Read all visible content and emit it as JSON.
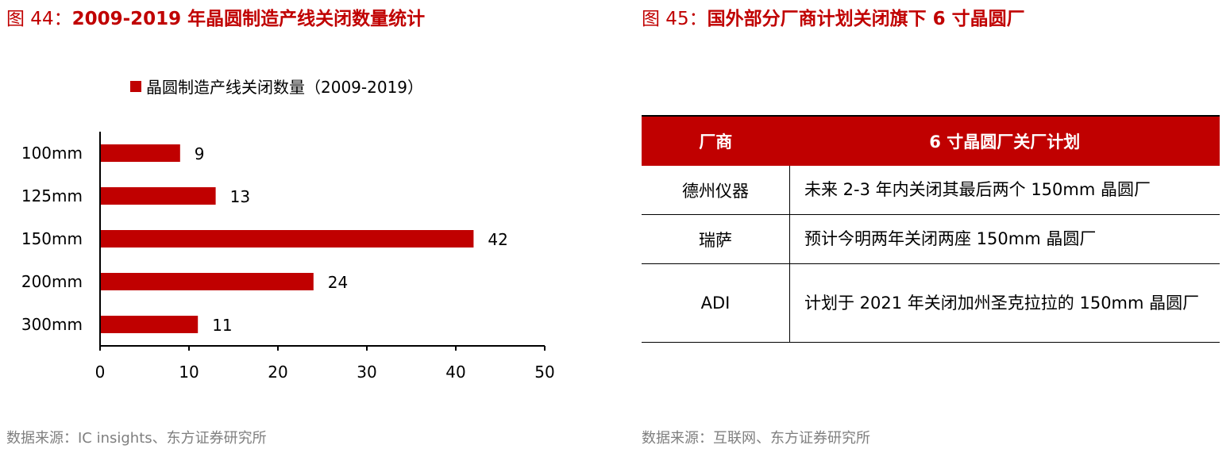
{
  "left_figure": {
    "title_prefix": "图 44：",
    "title_main": "2009-2019 年晶圆制造产线关闭数量统计",
    "source": "数据来源：IC insights、东方证券研究所"
  },
  "right_figure": {
    "title_prefix": "图 45：",
    "title_main": "国外部分厂商计划关闭旗下 6 寸晶圆厂",
    "source": "数据来源：互联网、东方证券研究所",
    "table": {
      "headers": [
        "厂商",
        "6 寸晶圆厂关厂计划"
      ],
      "rows": [
        {
          "vendor": "德州仪器",
          "plan": "未来 2-3 年内关闭其最后两个 150mm 晶圆厂"
        },
        {
          "vendor": "瑞萨",
          "plan": "预计今明两年关闭两座 150mm 晶圆厂"
        },
        {
          "vendor": "ADI",
          "plan": "计划于 2021 年关闭加州圣克拉拉的 150mm 晶圆厂"
        }
      ]
    }
  },
  "chart_data": {
    "type": "bar",
    "orientation": "horizontal",
    "categories": [
      "100mm",
      "125mm",
      "150mm",
      "200mm",
      "300mm"
    ],
    "series": [
      {
        "name": "晶圆制造产线关闭数量（2009-2019）",
        "values": [
          9,
          13,
          42,
          24,
          11
        ],
        "color": "#c00000"
      }
    ],
    "xlim": [
      0,
      50
    ],
    "xticks": [
      0,
      10,
      20,
      30,
      40,
      50
    ],
    "legend_position": "top",
    "grid": false
  }
}
